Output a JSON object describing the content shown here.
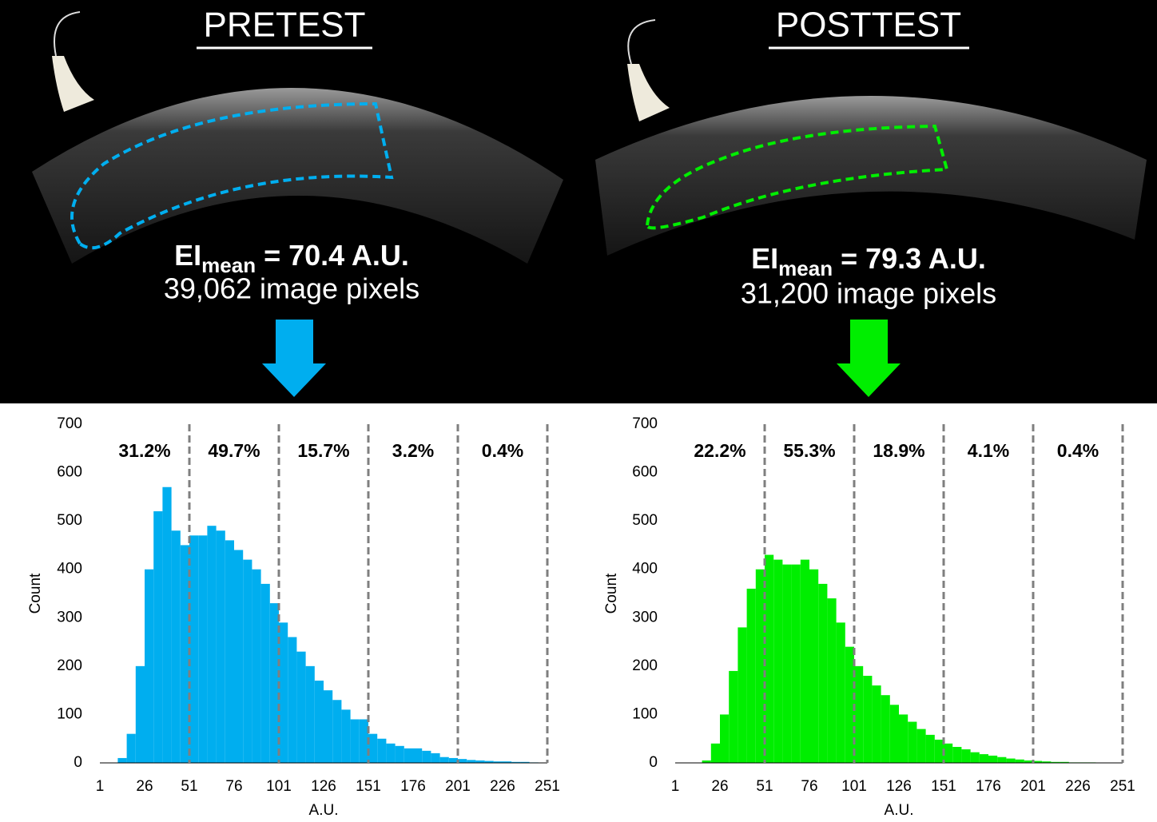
{
  "panels": [
    {
      "title": "PRETEST",
      "ei": "EI",
      "ei_sub": "mean",
      "ei_text": " = 70.4 A.U.",
      "pixels": "39,062 image pixels"
    },
    {
      "title": "POSTTEST",
      "ei": "EI",
      "ei_sub": "mean",
      "ei_text": " = 79.3 A.U.",
      "pixels": "31,200 image pixels"
    }
  ],
  "chart_data": [
    {
      "type": "histogram",
      "color": "#00aeef",
      "xlabel": "A.U.",
      "ylabel": "Count",
      "bins": [
        1,
        6,
        11,
        16,
        21,
        26,
        31,
        36,
        41,
        46,
        51,
        56,
        61,
        66,
        71,
        76,
        81,
        86,
        91,
        96,
        101,
        106,
        111,
        116,
        121,
        126,
        131,
        136,
        141,
        146,
        151,
        156,
        161,
        166,
        171,
        176,
        181,
        186,
        191,
        196,
        201,
        206,
        211,
        216,
        221,
        226,
        231,
        236,
        241,
        246,
        251
      ],
      "values": [
        0,
        0,
        10,
        60,
        200,
        400,
        520,
        570,
        480,
        450,
        470,
        470,
        490,
        480,
        460,
        440,
        420,
        400,
        370,
        330,
        290,
        260,
        230,
        200,
        170,
        150,
        130,
        110,
        90,
        90,
        60,
        50,
        40,
        35,
        30,
        30,
        25,
        20,
        12,
        10,
        8,
        6,
        5,
        4,
        3,
        3,
        2,
        2,
        1,
        0
      ],
      "xlim": [
        1,
        251
      ],
      "xticks": [
        1,
        26,
        51,
        76,
        101,
        126,
        151,
        176,
        201,
        226,
        251
      ],
      "ylim": [
        0,
        700
      ],
      "yticks": [
        0,
        100,
        200,
        300,
        400,
        500,
        600,
        700
      ],
      "dividers": [
        51,
        101,
        151,
        201,
        251
      ],
      "regions": {
        "values": [
          31.2,
          49.7,
          15.7,
          3.2,
          0.4
        ],
        "value_labels": [
          "31.2%",
          "49.7%",
          "15.7%",
          "3.2%",
          "0.4%"
        ]
      }
    },
    {
      "type": "histogram",
      "color": "#00ee00",
      "xlabel": "A.U.",
      "ylabel": "Count",
      "bins": [
        1,
        6,
        11,
        16,
        21,
        26,
        31,
        36,
        41,
        46,
        51,
        56,
        61,
        66,
        71,
        76,
        81,
        86,
        91,
        96,
        101,
        106,
        111,
        116,
        121,
        126,
        131,
        136,
        141,
        146,
        151,
        156,
        161,
        166,
        171,
        176,
        181,
        186,
        191,
        196,
        201,
        206,
        211,
        216,
        221,
        226,
        231,
        236,
        241,
        246,
        251
      ],
      "values": [
        0,
        0,
        0,
        5,
        40,
        100,
        190,
        280,
        360,
        400,
        430,
        420,
        410,
        410,
        420,
        400,
        370,
        340,
        290,
        240,
        200,
        180,
        160,
        140,
        120,
        100,
        85,
        70,
        58,
        48,
        40,
        33,
        28,
        22,
        18,
        15,
        12,
        9,
        7,
        5,
        4,
        3,
        2,
        2,
        1,
        1,
        1,
        0,
        0,
        0
      ],
      "xlim": [
        1,
        251
      ],
      "xticks": [
        1,
        26,
        51,
        76,
        101,
        126,
        151,
        176,
        201,
        226,
        251
      ],
      "ylim": [
        0,
        700
      ],
      "yticks": [
        0,
        100,
        200,
        300,
        400,
        500,
        600,
        700
      ],
      "dividers": [
        51,
        101,
        151,
        201,
        251
      ],
      "regions": {
        "values": [
          22.2,
          55.3,
          18.9,
          4.1,
          0.4
        ],
        "value_labels": [
          "22.2%",
          "55.3%",
          "18.9%",
          "4.1%",
          "0.4%"
        ]
      }
    }
  ]
}
